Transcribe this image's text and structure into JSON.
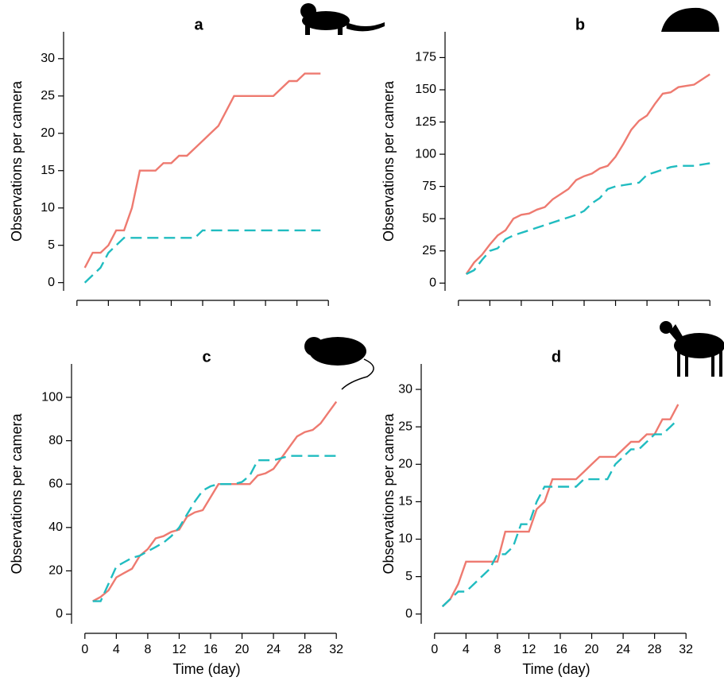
{
  "chart_data": [
    {
      "type": "line",
      "title": "a",
      "ylabel": "Observations per camera",
      "x": [
        1,
        2,
        3,
        4,
        5,
        6,
        7,
        8,
        9,
        10,
        11,
        12,
        13,
        14,
        15,
        16,
        17,
        18,
        19,
        20,
        21,
        22,
        23,
        24,
        25,
        26,
        27,
        28,
        29,
        30,
        31
      ],
      "series": [
        {
          "color": "#ee7a70",
          "style": "solid",
          "values": [
            2,
            4,
            4,
            5,
            7,
            7,
            10,
            15,
            15,
            15,
            16,
            16,
            17,
            17,
            18,
            19,
            20,
            21,
            23,
            25,
            25,
            25,
            25,
            25,
            25,
            26,
            27,
            27,
            28,
            28,
            28
          ]
        },
        {
          "color": "#20bcc0",
          "style": "dashed",
          "values": [
            0,
            1,
            2,
            4,
            5,
            6,
            6,
            6,
            6,
            6,
            6,
            6,
            6,
            6,
            6,
            7,
            7,
            7,
            7,
            7,
            7,
            7,
            7,
            7,
            7,
            7,
            7,
            7,
            7,
            7,
            7
          ]
        }
      ],
      "xlim": [
        -1.7,
        33.7
      ],
      "xticks": [
        0,
        4,
        8,
        12,
        16,
        20,
        24,
        28,
        32
      ],
      "show_xtick_labels": false,
      "ylim": [
        -1.1,
        33.6
      ],
      "yticks": [
        0,
        5,
        10,
        15,
        20,
        25,
        30
      ]
    },
    {
      "type": "line",
      "title": "b",
      "ylabel": "Observations per camera",
      "x": [
        1,
        2,
        3,
        4,
        5,
        6,
        7,
        8,
        9,
        10,
        11,
        12,
        13,
        14,
        15,
        16,
        17,
        18,
        19,
        20,
        21,
        22,
        23,
        24,
        25,
        26,
        27,
        28,
        29,
        30,
        31,
        32
      ],
      "series": [
        {
          "color": "#ee7a70",
          "style": "solid",
          "values": [
            7,
            16,
            22,
            30,
            37,
            41,
            50,
            53,
            54,
            57,
            59,
            65,
            69,
            73,
            80,
            83,
            85,
            89,
            91,
            98,
            108,
            119,
            126,
            130,
            139,
            147,
            148,
            152,
            153,
            154,
            158,
            162
          ]
        },
        {
          "color": "#20bcc0",
          "style": "dashed",
          "values": [
            7,
            10,
            18,
            25,
            27,
            34,
            37,
            39,
            41,
            43,
            45,
            47,
            49,
            51,
            53,
            56,
            62,
            66,
            73,
            75,
            76,
            77,
            78,
            84,
            86,
            88,
            90,
            91,
            91,
            91,
            92,
            93
          ]
        }
      ],
      "xlim": [
        -1.7,
        33.7
      ],
      "xticks": [
        0,
        4,
        8,
        12,
        16,
        20,
        24,
        28,
        32
      ],
      "show_xtick_labels": false,
      "ylim": [
        -6,
        195
      ],
      "yticks": [
        0,
        25,
        50,
        75,
        100,
        125,
        150,
        175
      ]
    },
    {
      "type": "line",
      "title": "c",
      "xlabel": "Time (day)",
      "ylabel": "Observations per camera",
      "x": [
        1,
        2,
        3,
        4,
        5,
        6,
        7,
        8,
        9,
        10,
        11,
        12,
        13,
        14,
        15,
        16,
        17,
        18,
        19,
        20,
        21,
        22,
        23,
        24,
        25,
        26,
        27,
        28,
        29,
        30,
        31,
        32
      ],
      "series": [
        {
          "color": "#ee7a70",
          "style": "solid",
          "values": [
            6,
            8,
            11,
            17,
            19,
            21,
            27,
            30,
            35,
            36,
            38,
            39,
            45,
            47,
            48,
            54,
            60,
            60,
            60,
            60,
            60,
            64,
            65,
            67,
            72,
            77,
            82,
            84,
            85,
            88,
            93,
            98
          ]
        },
        {
          "color": "#20bcc0",
          "style": "dashed",
          "values": [
            6,
            6,
            14,
            22,
            24,
            26,
            27,
            29,
            31,
            33,
            36,
            40,
            46,
            52,
            57,
            59,
            60,
            60,
            60,
            61,
            64,
            71,
            71,
            71,
            72,
            73,
            73,
            73,
            73,
            73,
            73,
            73
          ]
        }
      ],
      "xlim": [
        -1.7,
        33.7
      ],
      "xticks": [
        0,
        4,
        8,
        12,
        16,
        20,
        24,
        28,
        32
      ],
      "show_xtick_labels": true,
      "ylim": [
        -4.4,
        115.4
      ],
      "yticks": [
        0,
        20,
        40,
        60,
        80,
        100
      ]
    },
    {
      "type": "line",
      "title": "d",
      "xlabel": "Time (day)",
      "ylabel": "Observations per camera",
      "x": [
        1,
        2,
        3,
        4,
        5,
        6,
        7,
        8,
        9,
        10,
        11,
        12,
        13,
        14,
        15,
        16,
        17,
        18,
        19,
        20,
        21,
        22,
        23,
        24,
        25,
        26,
        27,
        28,
        29,
        30,
        31
      ],
      "series": [
        {
          "color": "#ee7a70",
          "style": "solid",
          "values": [
            1,
            2,
            4,
            7,
            7,
            7,
            7,
            7,
            11,
            11,
            11,
            11,
            14,
            15,
            18,
            18,
            18,
            18,
            19,
            20,
            21,
            21,
            21,
            22,
            23,
            23,
            24,
            24,
            26,
            26,
            28
          ]
        },
        {
          "color": "#20bcc0",
          "style": "dashed",
          "values": [
            1,
            2,
            3,
            3,
            4,
            5,
            6,
            8,
            8,
            9,
            12,
            12,
            15,
            17,
            17,
            17,
            17,
            17,
            18,
            18,
            18,
            18,
            20,
            21,
            22,
            22,
            23,
            24,
            24,
            25,
            26
          ]
        }
      ],
      "xlim": [
        -1.7,
        33.7
      ],
      "xticks": [
        0,
        4,
        8,
        12,
        16,
        20,
        24,
        28,
        32
      ],
      "show_xtick_labels": true,
      "ylim": [
        -1.3,
        33.4
      ],
      "yticks": [
        0,
        5,
        10,
        15,
        20,
        25,
        30
      ]
    }
  ]
}
